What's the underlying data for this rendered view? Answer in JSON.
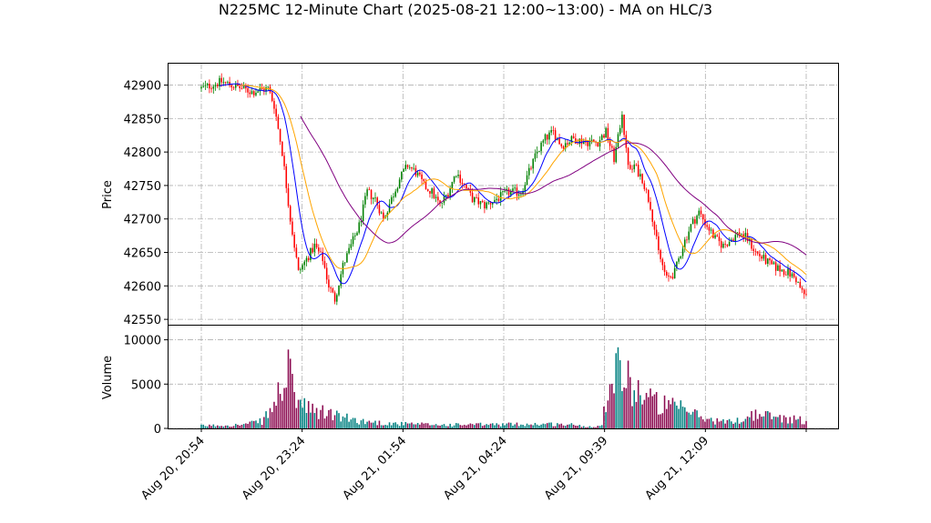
{
  "chart_data": {
    "type": "candlestick",
    "title": "N225MC 12-Minute Chart (2025-08-21 12:00~13:00) - MA on HLC/3",
    "price_panel": {
      "ylabel": "Price",
      "ylim": [
        42542,
        42932
      ],
      "yticks": [
        42550,
        42600,
        42650,
        42700,
        42750,
        42800,
        42850,
        42900
      ],
      "grid": true
    },
    "volume_panel": {
      "ylabel": "Volume",
      "ylim": [
        0,
        11600
      ],
      "yticks": [
        0,
        5000,
        10000
      ],
      "grid": true
    },
    "x_tick_labels": [
      "Aug 20, 20:54",
      "Aug 20, 23:24",
      "Aug 21, 01:54",
      "Aug 21, 04:24",
      "Aug 21, 09:39",
      "Aug 21, 12:09"
    ],
    "bar_count": 300,
    "up_color": "#008000",
    "down_color": "#ff0000",
    "ma_colors": [
      "#0000ff",
      "#ffa500",
      "#800080"
    ],
    "anchors": [
      [
        0,
        42895
      ],
      [
        10,
        42905
      ],
      [
        25,
        42890
      ],
      [
        33,
        42895
      ],
      [
        36,
        42870
      ],
      [
        40,
        42800
      ],
      [
        44,
        42700
      ],
      [
        48,
        42620
      ],
      [
        52,
        42640
      ],
      [
        56,
        42660
      ],
      [
        60,
        42640
      ],
      [
        63,
        42600
      ],
      [
        66,
        42580
      ],
      [
        70,
        42630
      ],
      [
        74,
        42660
      ],
      [
        78,
        42690
      ],
      [
        82,
        42740
      ],
      [
        86,
        42730
      ],
      [
        90,
        42700
      ],
      [
        94,
        42730
      ],
      [
        98,
        42760
      ],
      [
        102,
        42780
      ],
      [
        106,
        42770
      ],
      [
        110,
        42750
      ],
      [
        114,
        42740
      ],
      [
        118,
        42720
      ],
      [
        122,
        42740
      ],
      [
        126,
        42770
      ],
      [
        130,
        42750
      ],
      [
        134,
        42730
      ],
      [
        140,
        42720
      ],
      [
        146,
        42730
      ],
      [
        152,
        42740
      ],
      [
        158,
        42740
      ],
      [
        162,
        42770
      ],
      [
        166,
        42800
      ],
      [
        170,
        42820
      ],
      [
        174,
        42830
      ],
      [
        178,
        42810
      ],
      [
        184,
        42820
      ],
      [
        190,
        42815
      ],
      [
        196,
        42815
      ],
      [
        200,
        42830
      ],
      [
        204,
        42790
      ],
      [
        206,
        42820
      ],
      [
        208,
        42860
      ],
      [
        210,
        42800
      ],
      [
        212,
        42770
      ],
      [
        214,
        42780
      ],
      [
        218,
        42760
      ],
      [
        222,
        42720
      ],
      [
        226,
        42650
      ],
      [
        230,
        42610
      ],
      [
        234,
        42620
      ],
      [
        238,
        42660
      ],
      [
        242,
        42690
      ],
      [
        246,
        42710
      ],
      [
        250,
        42690
      ],
      [
        254,
        42670
      ],
      [
        258,
        42660
      ],
      [
        262,
        42670
      ],
      [
        266,
        42680
      ],
      [
        270,
        42670
      ],
      [
        274,
        42650
      ],
      [
        278,
        42640
      ],
      [
        282,
        42630
      ],
      [
        286,
        42625
      ],
      [
        290,
        42620
      ],
      [
        294,
        42610
      ],
      [
        297,
        42590
      ],
      [
        299,
        42585
      ]
    ],
    "volume_anchors": [
      [
        0,
        300
      ],
      [
        20,
        400
      ],
      [
        30,
        800
      ],
      [
        36,
        2500
      ],
      [
        40,
        5000
      ],
      [
        43,
        6000
      ],
      [
        46,
        4000
      ],
      [
        50,
        2500
      ],
      [
        56,
        1800
      ],
      [
        62,
        1800
      ],
      [
        70,
        1200
      ],
      [
        80,
        800
      ],
      [
        90,
        600
      ],
      [
        100,
        500
      ],
      [
        120,
        400
      ],
      [
        150,
        450
      ],
      [
        170,
        500
      ],
      [
        185,
        400
      ],
      [
        190,
        200
      ],
      [
        198,
        300
      ],
      [
        200,
        3500
      ],
      [
        203,
        6500
      ],
      [
        205,
        8000
      ],
      [
        208,
        6000
      ],
      [
        212,
        5000
      ],
      [
        218,
        4000
      ],
      [
        224,
        3000
      ],
      [
        230,
        2500
      ],
      [
        240,
        2000
      ],
      [
        250,
        1000
      ],
      [
        260,
        700
      ],
      [
        268,
        1000
      ],
      [
        272,
        1600
      ],
      [
        280,
        1400
      ],
      [
        290,
        1100
      ],
      [
        299,
        900
      ]
    ]
  }
}
